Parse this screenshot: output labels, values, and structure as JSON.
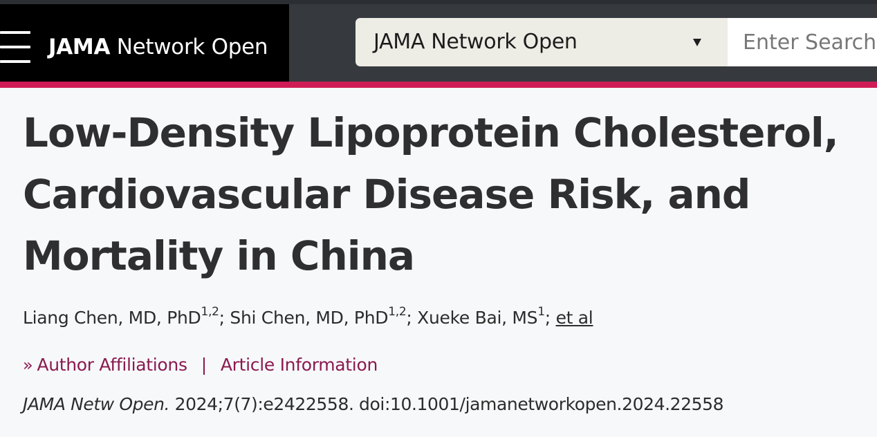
{
  "header": {
    "brand_bold": "JAMA",
    "brand_rest": " Network Open",
    "journal_select": "JAMA Network Open",
    "search_placeholder": "Enter Search Term"
  },
  "article": {
    "title": "Low-Density Lipoprotein Cholesterol, Cardiovascular Disease Risk, and Mortality in China",
    "authors": [
      {
        "name": "Liang Chen, MD, PhD",
        "affiliations": "1,2"
      },
      {
        "name": "Shi Chen, MD, PhD",
        "affiliations": "1,2"
      },
      {
        "name": "Xueke Bai, MS",
        "affiliations": "1"
      }
    ],
    "et_al": "et al",
    "author_affiliations_link": "Author Affiliations",
    "links_separator": "|",
    "article_information_link": "Article Information",
    "citation_journal": "JAMA Netw Open.",
    "citation_detail": " 2024;7(7):e2422558. doi:10.1001/jamanetworkopen.2024.22558"
  },
  "icons": {
    "menu": "hamburger-menu-icon",
    "dropdown": "caret-down-icon",
    "expand": "double-chevron-right-icon"
  },
  "colors": {
    "accent": "#cf1c56",
    "link": "#8a1a4f",
    "header_dark": "#363a3f",
    "brand_block": "#000000"
  }
}
